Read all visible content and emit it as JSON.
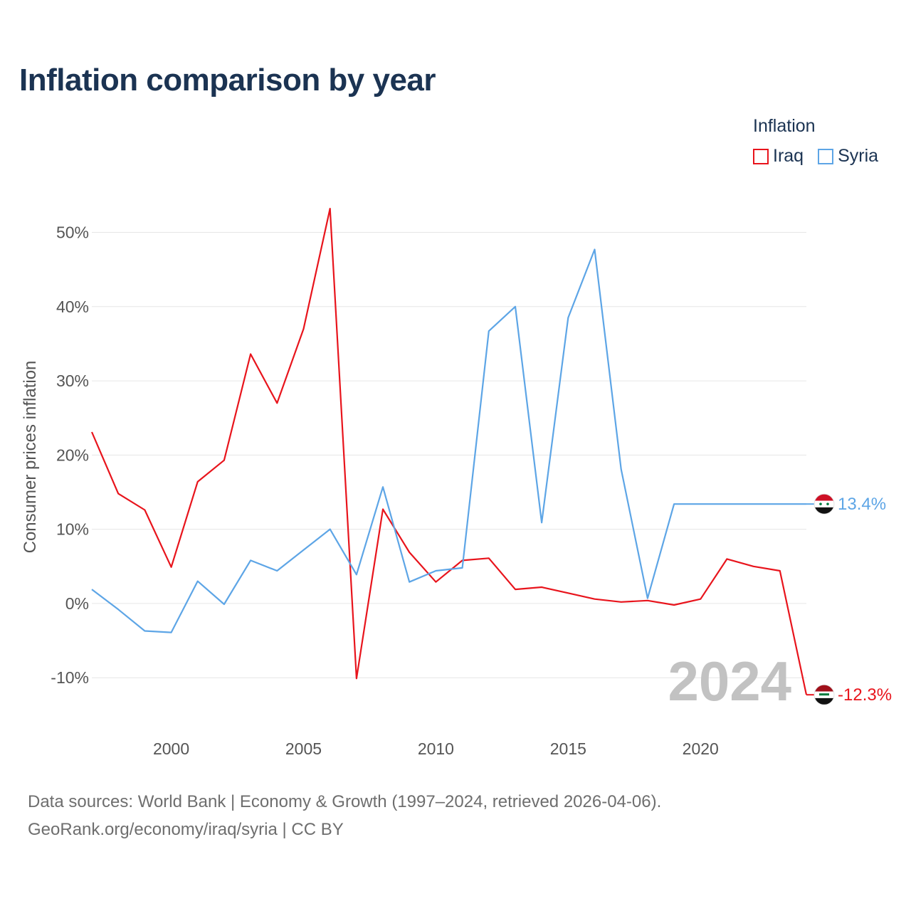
{
  "title": "Inflation comparison by year",
  "legend": {
    "title": "Inflation",
    "items": [
      {
        "label": "Iraq",
        "color": "#e8141c"
      },
      {
        "label": "Syria",
        "color": "#5da5e6"
      }
    ]
  },
  "year_watermark": "2024",
  "source": {
    "line1": "Data sources: World Bank | Economy & Growth (1997–2024, retrieved 2026-04-06).",
    "line2": "GeoRank.org/economy/iraq/syria | CC BY"
  },
  "chart_data": {
    "type": "line",
    "title": "Inflation comparison by year",
    "xlabel": "",
    "ylabel": "Consumer prices inflation",
    "xlim": [
      1997,
      2024
    ],
    "ylim": [
      -16.5,
      53.5
    ],
    "x_ticks": [
      2000,
      2005,
      2010,
      2015,
      2020
    ],
    "x_tick_labels": [
      "2000",
      "2005",
      "2010",
      "2015",
      "2020"
    ],
    "y_ticks": [
      -10,
      0,
      10,
      20,
      30,
      40,
      50
    ],
    "y_tick_labels": [
      "-10%",
      "0%",
      "10%",
      "20%",
      "30%",
      "40%",
      "50%"
    ],
    "grid": true,
    "x": [
      1997,
      1998,
      1999,
      2000,
      2001,
      2002,
      2003,
      2004,
      2005,
      2006,
      2007,
      2008,
      2009,
      2010,
      2011,
      2012,
      2013,
      2014,
      2015,
      2016,
      2017,
      2018,
      2019,
      2020,
      2021,
      2022,
      2023,
      2024
    ],
    "series": [
      {
        "name": "Iraq",
        "color": "#e8141c",
        "end_label": "-12.3%",
        "values": [
          23.1,
          14.8,
          12.6,
          4.9,
          16.4,
          19.3,
          33.6,
          27.0,
          37.0,
          53.2,
          -10.1,
          12.7,
          6.9,
          2.9,
          5.8,
          6.1,
          1.9,
          2.2,
          1.4,
          0.6,
          0.2,
          0.4,
          -0.2,
          0.6,
          6.0,
          5.0,
          4.4,
          -12.3
        ]
      },
      {
        "name": "Syria",
        "color": "#5da5e6",
        "end_label": "13.4%",
        "values": [
          1.9,
          -0.8,
          -3.7,
          -3.9,
          3.0,
          -0.1,
          5.8,
          4.4,
          7.2,
          10.0,
          3.9,
          15.7,
          2.9,
          4.4,
          4.8,
          36.7,
          40.0,
          10.9,
          38.5,
          47.7,
          18.1,
          0.7,
          13.4,
          13.4,
          13.4,
          13.4,
          13.4,
          13.4
        ]
      }
    ]
  }
}
